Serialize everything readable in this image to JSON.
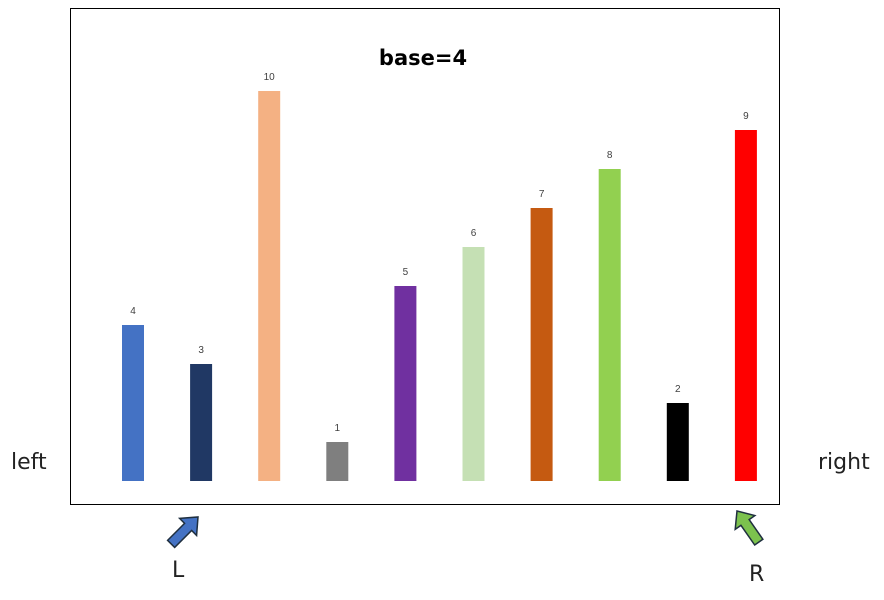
{
  "chart_data": {
    "type": "bar",
    "title": "base=4",
    "categories": [
      "",
      "",
      "",
      "",
      "",
      "",
      "",
      "",
      "",
      ""
    ],
    "values": [
      4,
      3,
      10,
      1,
      5,
      6,
      7,
      8,
      2,
      9
    ],
    "colors": [
      "#4472C4",
      "#203864",
      "#F4B183",
      "#7F7F7F",
      "#7030A0",
      "#C5E0B4",
      "#C55A11",
      "#92D050",
      "#000000",
      "#FF0000"
    ],
    "ylim": [
      0,
      10
    ],
    "grid": false,
    "legend": "none"
  },
  "labels": {
    "left": "left",
    "right": "right",
    "left_pointer": "L",
    "right_pointer": "R"
  },
  "pointers": [
    {
      "name": "L",
      "color": "#4472C4",
      "bar_index": 1
    },
    {
      "name": "R",
      "color": "#7CC24E",
      "bar_index": 9
    }
  ]
}
